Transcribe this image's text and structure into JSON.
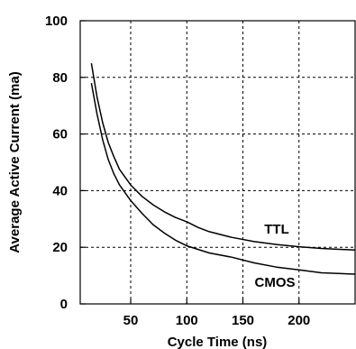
{
  "chart_data": {
    "type": "line",
    "title": "",
    "xlabel": "Cycle Time (ns)",
    "ylabel": "Average Active Current (ma)",
    "xlim": [
      5,
      250
    ],
    "ylim": [
      0,
      100
    ],
    "x_ticks": [
      50,
      100,
      150,
      200
    ],
    "y_ticks": [
      0,
      20,
      40,
      60,
      80,
      100
    ],
    "grid": "dashed",
    "series": [
      {
        "name": "TTL",
        "label_at": [
          128,
          235
        ],
        "points": [
          [
            15,
            85
          ],
          [
            20,
            73
          ],
          [
            25,
            64
          ],
          [
            30,
            57
          ],
          [
            35,
            52
          ],
          [
            40,
            47.5
          ],
          [
            50,
            42
          ],
          [
            60,
            38
          ],
          [
            70,
            35
          ],
          [
            80,
            32.5
          ],
          [
            90,
            30.5
          ],
          [
            100,
            29
          ],
          [
            110,
            27
          ],
          [
            120,
            25.5
          ],
          [
            140,
            23.5
          ],
          [
            160,
            22
          ],
          [
            180,
            21
          ],
          [
            200,
            20.2
          ],
          [
            220,
            19.6
          ],
          [
            250,
            19
          ]
        ]
      },
      {
        "name": "CMOS",
        "label_at": [
          125,
          255
        ],
        "points": [
          [
            15,
            78
          ],
          [
            20,
            67
          ],
          [
            25,
            58
          ],
          [
            30,
            51
          ],
          [
            35,
            46
          ],
          [
            40,
            42
          ],
          [
            50,
            36.5
          ],
          [
            60,
            32
          ],
          [
            70,
            28
          ],
          [
            80,
            25
          ],
          [
            90,
            22.5
          ],
          [
            100,
            20.5
          ],
          [
            120,
            18
          ],
          [
            140,
            16.5
          ],
          [
            160,
            14.5
          ],
          [
            180,
            13
          ],
          [
            200,
            12
          ],
          [
            220,
            11
          ],
          [
            250,
            10.5
          ]
        ]
      }
    ]
  }
}
